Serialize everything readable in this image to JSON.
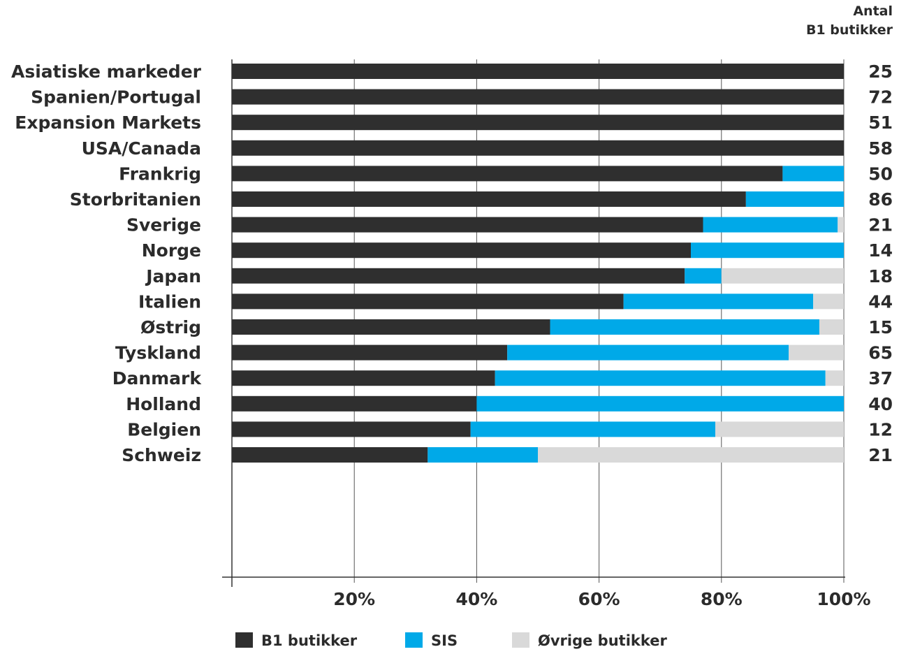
{
  "chart_data": {
    "type": "bar",
    "orientation": "horizontal",
    "stacked": true,
    "categories": [
      "Asiatiske markeder",
      "Spanien/Portugal",
      "Expansion Markets",
      "USA/Canada",
      "Frankrig",
      "Storbritanien",
      "Sverige",
      "Norge",
      "Japan",
      "Italien",
      "Østrig",
      "Tyskland",
      "Danmark",
      "Holland",
      "Belgien",
      "Schweiz"
    ],
    "series": [
      {
        "name": "B1 butikker",
        "color": "#2f2f2f",
        "values": [
          100,
          100,
          100,
          100,
          90,
          84,
          77,
          75,
          74,
          64,
          52,
          45,
          43,
          40,
          39,
          32
        ]
      },
      {
        "name": "SIS",
        "color": "#00a9e8",
        "values": [
          0,
          0,
          0,
          0,
          10,
          16,
          22,
          25,
          6,
          31,
          44,
          46,
          54,
          60,
          40,
          18
        ]
      },
      {
        "name": "Øvrige butikker",
        "color": "#d9d9d9",
        "values": [
          0,
          0,
          0,
          0,
          0,
          0,
          1,
          0,
          20,
          5,
          4,
          9,
          3,
          0,
          21,
          50
        ]
      }
    ],
    "counts_header": [
      "Antal",
      "B1 butikker"
    ],
    "counts": [
      25,
      72,
      51,
      58,
      50,
      86,
      21,
      14,
      18,
      44,
      15,
      65,
      37,
      40,
      12,
      21
    ],
    "xlim": [
      0,
      100
    ],
    "xticks": [
      20,
      40,
      60,
      80,
      100
    ],
    "xtick_labels": [
      "20%",
      "40%",
      "60%",
      "80%",
      "100%"
    ],
    "grid": "vertical",
    "legend_position": "bottom"
  }
}
